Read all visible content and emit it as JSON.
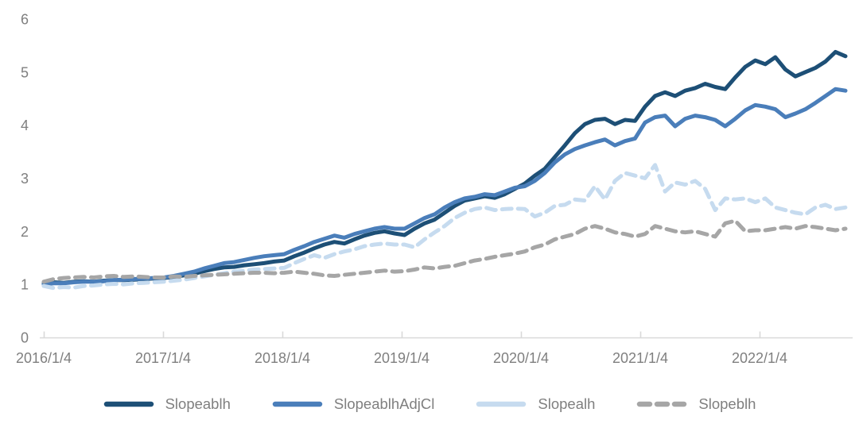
{
  "chart_data": {
    "type": "line",
    "title": "",
    "xlabel": "",
    "ylabel": "",
    "grid": false,
    "legend_position": "bottom-center",
    "axis_color": "#d9d9d9",
    "tick_text_color": "#7f7f7f",
    "x_axis": {
      "tick_years": [
        0,
        1,
        2,
        3,
        4,
        5,
        6
      ],
      "tick_labels": [
        "2016/1/4",
        "2017/1/4",
        "2018/1/4",
        "2019/1/4",
        "2020/1/4",
        "2021/1/4",
        "2022/1/4"
      ],
      "data_span_years": 6.72
    },
    "y_axis": {
      "ticks": [
        0,
        1,
        2,
        3,
        4,
        5,
        6
      ],
      "tick_labels": [
        "0",
        "1",
        "2",
        "3",
        "4",
        "5",
        "6"
      ],
      "range": [
        0,
        6
      ]
    },
    "series": [
      {
        "name": "Slopeablh",
        "color": "#1d4f76",
        "style": "solid",
        "legend_style": "solid",
        "values": [
          1.02,
          1.04,
          1.03,
          1.05,
          1.06,
          1.05,
          1.07,
          1.08,
          1.08,
          1.09,
          1.1,
          1.11,
          1.12,
          1.14,
          1.17,
          1.2,
          1.25,
          1.29,
          1.32,
          1.33,
          1.36,
          1.38,
          1.4,
          1.43,
          1.45,
          1.53,
          1.6,
          1.68,
          1.75,
          1.8,
          1.77,
          1.85,
          1.92,
          1.97,
          2.0,
          1.96,
          1.93,
          2.05,
          2.15,
          2.22,
          2.35,
          2.48,
          2.58,
          2.62,
          2.66,
          2.63,
          2.7,
          2.8,
          2.9,
          3.05,
          3.18,
          3.4,
          3.62,
          3.85,
          4.02,
          4.1,
          4.12,
          4.02,
          4.1,
          4.08,
          4.35,
          4.55,
          4.62,
          4.55,
          4.65,
          4.7,
          4.78,
          4.72,
          4.68,
          4.9,
          5.1,
          5.22,
          5.15,
          5.28,
          5.05,
          4.92,
          5.0,
          5.08,
          5.2,
          5.38,
          5.3
        ]
      },
      {
        "name": "SlopeablhAdjCl",
        "color": "#4a7eba",
        "style": "solid",
        "legend_style": "solid",
        "values": [
          1.0,
          1.02,
          1.02,
          1.04,
          1.05,
          1.05,
          1.06,
          1.08,
          1.09,
          1.1,
          1.11,
          1.12,
          1.13,
          1.16,
          1.2,
          1.24,
          1.3,
          1.35,
          1.4,
          1.42,
          1.46,
          1.5,
          1.53,
          1.55,
          1.57,
          1.65,
          1.72,
          1.8,
          1.86,
          1.92,
          1.88,
          1.95,
          2.0,
          2.05,
          2.08,
          2.05,
          2.05,
          2.15,
          2.25,
          2.32,
          2.45,
          2.55,
          2.62,
          2.65,
          2.7,
          2.68,
          2.75,
          2.82,
          2.85,
          2.95,
          3.1,
          3.3,
          3.45,
          3.55,
          3.62,
          3.68,
          3.73,
          3.62,
          3.7,
          3.75,
          4.05,
          4.15,
          4.18,
          3.98,
          4.12,
          4.18,
          4.15,
          4.1,
          3.98,
          4.12,
          4.28,
          4.38,
          4.35,
          4.3,
          4.15,
          4.22,
          4.3,
          4.42,
          4.55,
          4.68,
          4.65
        ]
      },
      {
        "name": "Slopealh",
        "color": "#c6dbef",
        "style": "dashed",
        "legend_style": "solid",
        "values": [
          0.97,
          0.93,
          0.95,
          0.94,
          0.97,
          0.98,
          1.0,
          1.01,
          1.0,
          1.02,
          1.03,
          1.04,
          1.05,
          1.07,
          1.09,
          1.12,
          1.15,
          1.18,
          1.21,
          1.24,
          1.26,
          1.28,
          1.29,
          1.3,
          1.31,
          1.4,
          1.48,
          1.55,
          1.5,
          1.57,
          1.62,
          1.66,
          1.72,
          1.75,
          1.77,
          1.75,
          1.75,
          1.7,
          1.85,
          1.98,
          2.1,
          2.25,
          2.35,
          2.42,
          2.45,
          2.4,
          2.42,
          2.43,
          2.42,
          2.28,
          2.35,
          2.48,
          2.5,
          2.6,
          2.58,
          2.85,
          2.6,
          2.95,
          3.1,
          3.05,
          3.0,
          3.25,
          2.75,
          2.92,
          2.88,
          2.95,
          2.8,
          2.4,
          2.62,
          2.6,
          2.62,
          2.55,
          2.62,
          2.45,
          2.4,
          2.35,
          2.32,
          2.45,
          2.5,
          2.42,
          2.45
        ]
      },
      {
        "name": "Slopeblh",
        "color": "#a6a6a6",
        "style": "dashed",
        "legend_style": "dashed",
        "values": [
          1.05,
          1.1,
          1.12,
          1.13,
          1.14,
          1.13,
          1.15,
          1.16,
          1.14,
          1.15,
          1.14,
          1.13,
          1.13,
          1.15,
          1.14,
          1.16,
          1.17,
          1.18,
          1.19,
          1.2,
          1.21,
          1.22,
          1.22,
          1.21,
          1.22,
          1.24,
          1.22,
          1.2,
          1.17,
          1.16,
          1.18,
          1.2,
          1.22,
          1.24,
          1.26,
          1.24,
          1.25,
          1.28,
          1.32,
          1.3,
          1.33,
          1.35,
          1.4,
          1.45,
          1.48,
          1.52,
          1.55,
          1.58,
          1.62,
          1.7,
          1.75,
          1.85,
          1.9,
          1.95,
          2.05,
          2.1,
          2.05,
          1.98,
          1.95,
          1.9,
          1.95,
          2.1,
          2.05,
          2.0,
          1.98,
          2.0,
          1.95,
          1.9,
          2.15,
          2.2,
          2.0,
          2.02,
          2.02,
          2.05,
          2.08,
          2.05,
          2.1,
          2.08,
          2.05,
          2.02,
          2.05
        ]
      }
    ]
  }
}
